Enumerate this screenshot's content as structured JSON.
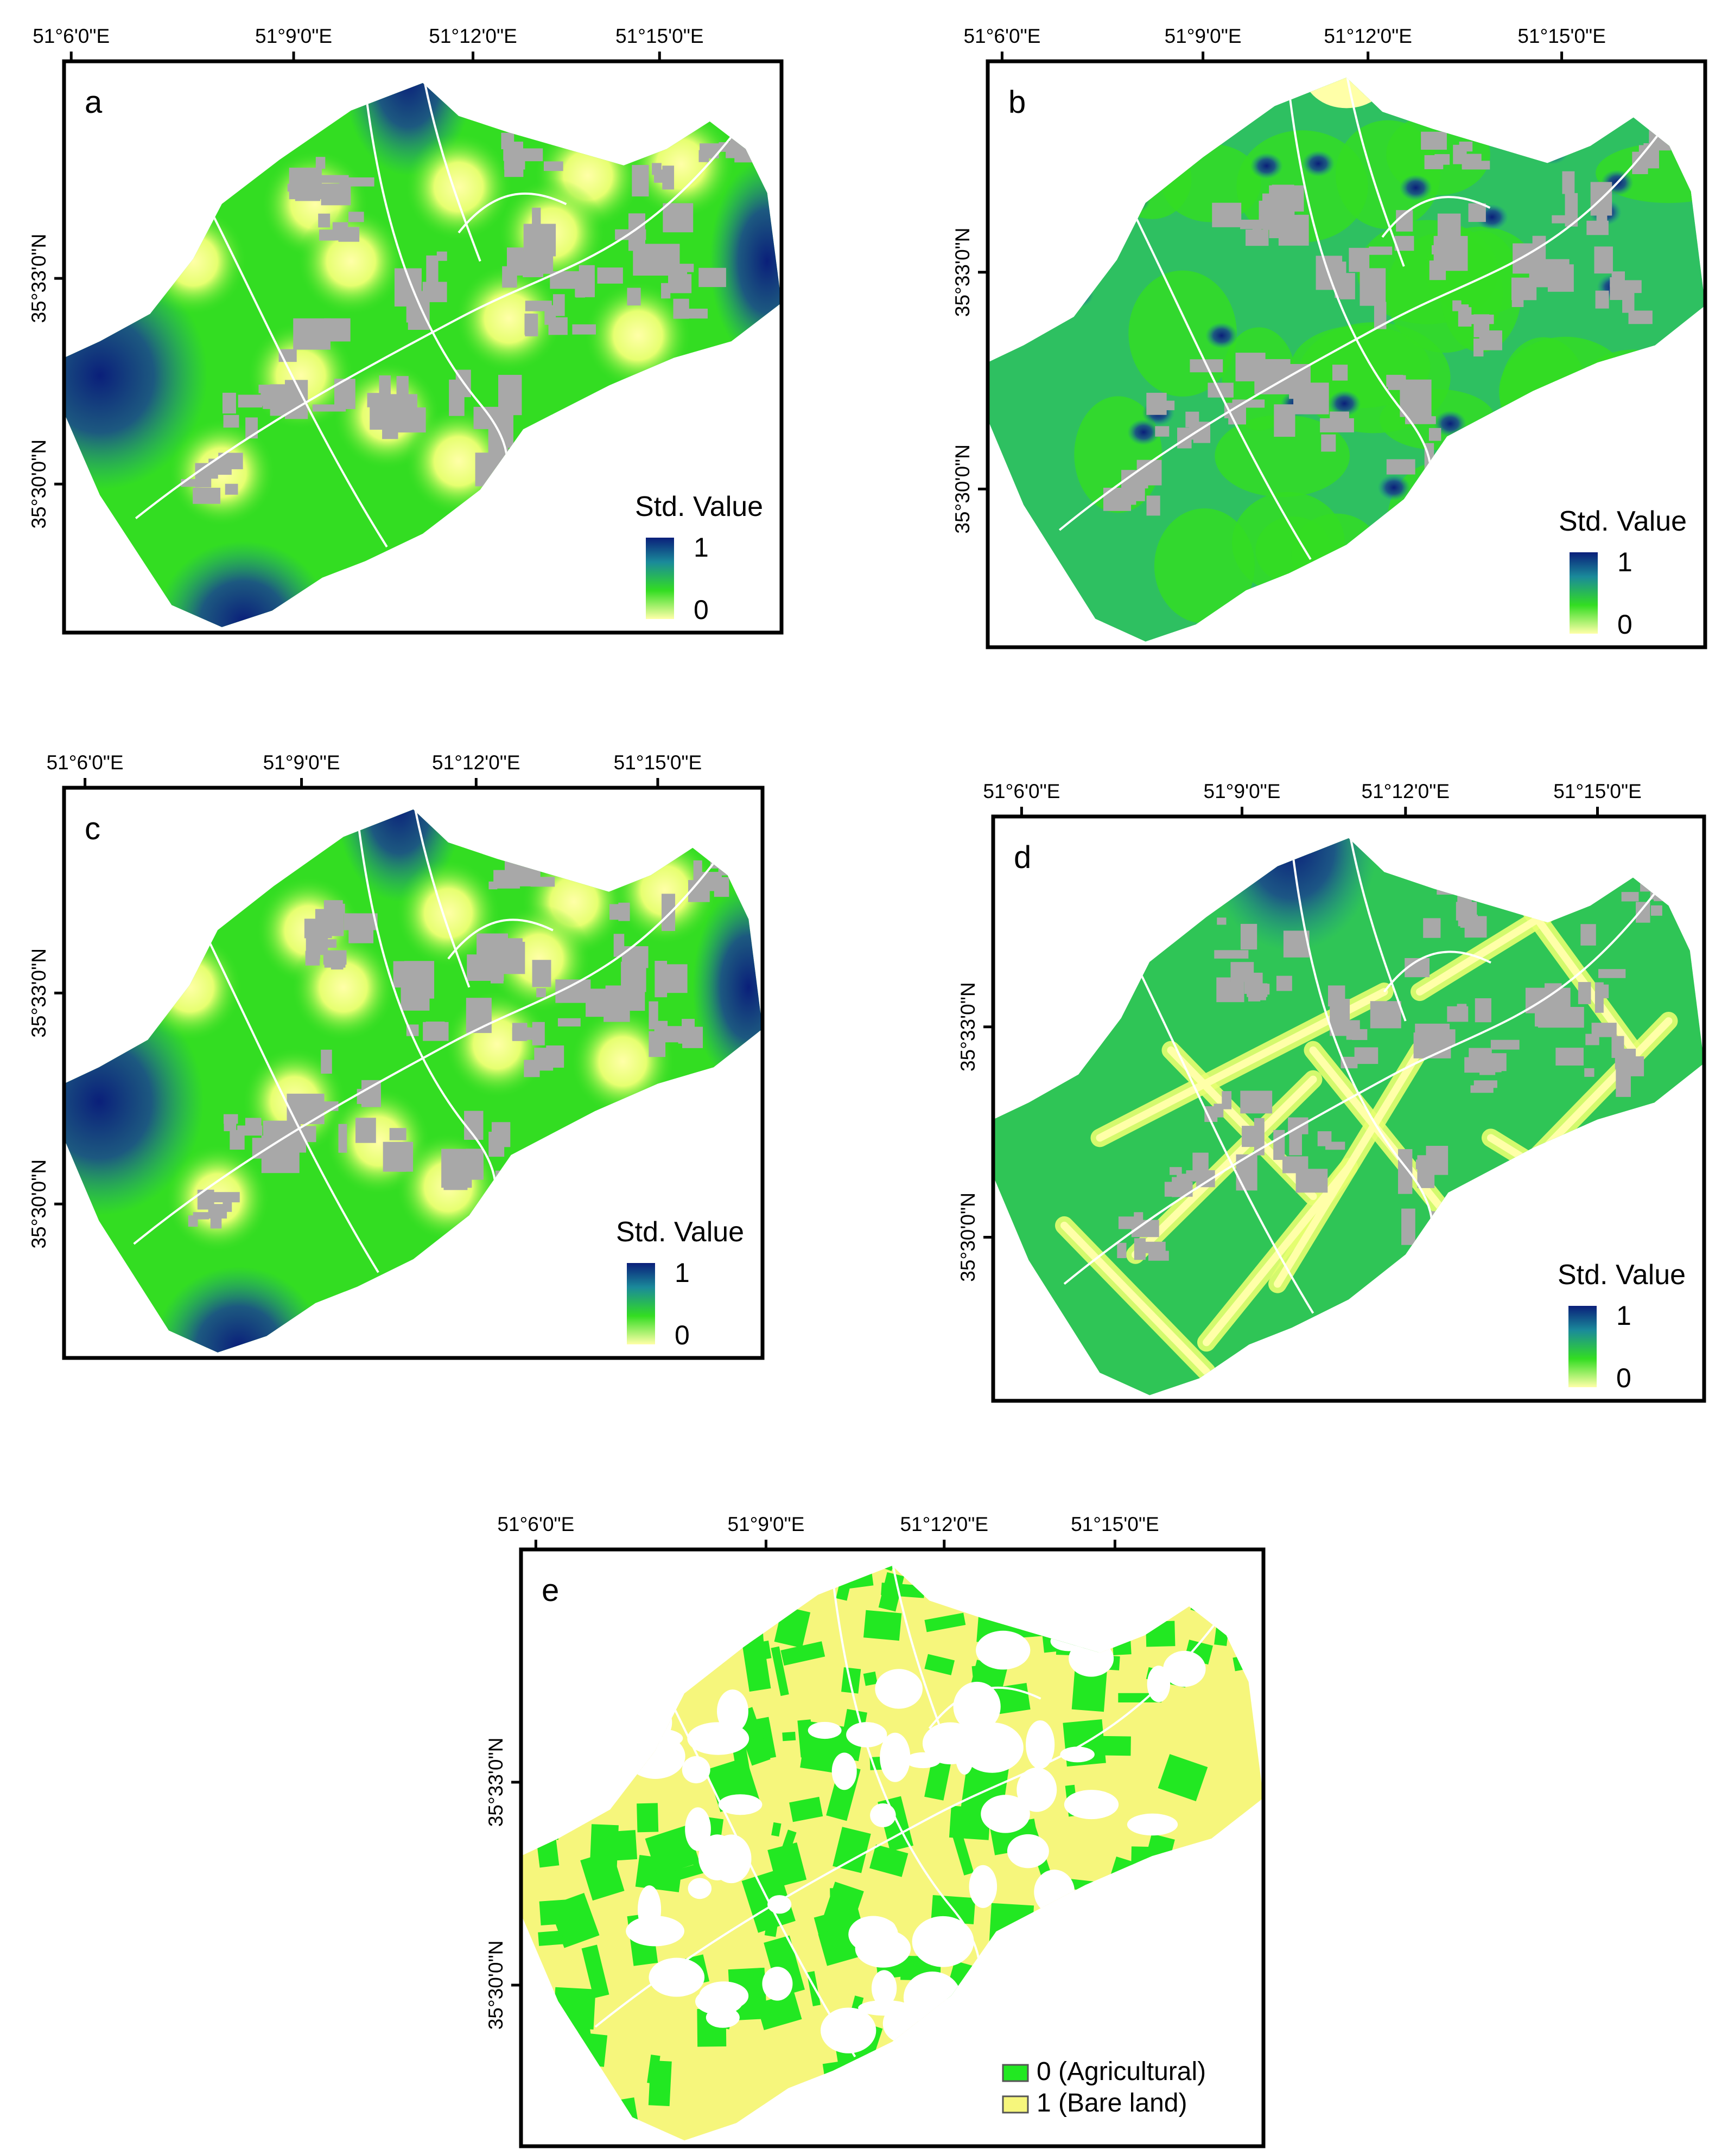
{
  "figure": {
    "longitude_labels": [
      "51°6'0\"E",
      "51°9'0\"E",
      "51°12'0\"E",
      "51°15'0\"E"
    ],
    "latitude_labels": [
      "35°33'0\"N",
      "35°30'0\"N"
    ],
    "panels": [
      {
        "id": "a",
        "label": "a",
        "legend": {
          "title": "Std. Value",
          "max": "1",
          "min": "0"
        }
      },
      {
        "id": "b",
        "label": "b",
        "legend": {
          "title": "Std. Value",
          "max": "1",
          "min": "0"
        }
      },
      {
        "id": "c",
        "label": "c",
        "legend": {
          "title": "Std. Value",
          "max": "1",
          "min": "0"
        }
      },
      {
        "id": "d",
        "label": "d",
        "legend": {
          "title": "Std. Value",
          "max": "1",
          "min": "0"
        }
      },
      {
        "id": "e",
        "label": "e",
        "legend": {
          "items": [
            {
              "label": "0 (Agricultural)",
              "color": "#22e822"
            },
            {
              "label": "1 (Bare land)",
              "color": "#f6f67c"
            }
          ]
        }
      }
    ]
  },
  "colors": {
    "ramp_high": "#0a1f7a",
    "ramp_mid_blue": "#1a8a9a",
    "ramp_mid_green": "#33dd22",
    "ramp_low": "#ffffa8",
    "urban_gray": "#a8a8a8",
    "road_white": "#ffffff",
    "agricultural": "#22e822",
    "bare_land": "#f6f67c"
  }
}
